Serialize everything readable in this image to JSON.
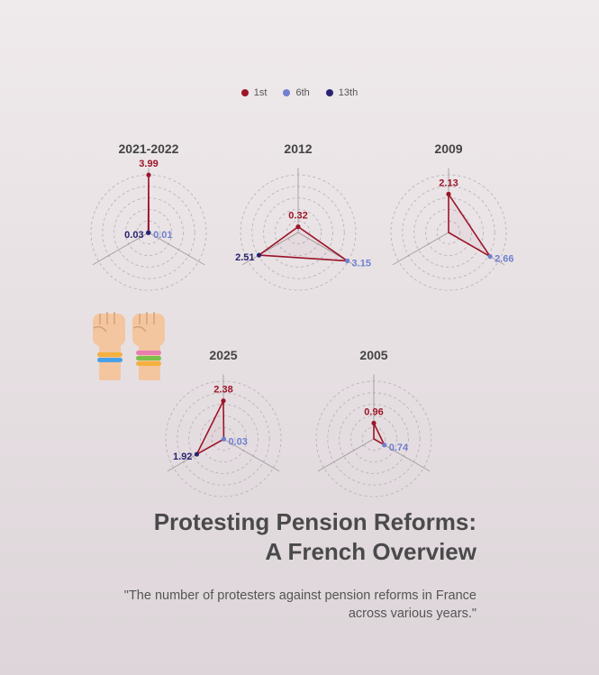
{
  "chart_data": {
    "type": "radar",
    "title": "Protesting Pension Reforms: A French Overview",
    "subtitle": "\"The number of protesters against pension reforms in France across various years.\"",
    "axes": [
      "1st",
      "6th",
      "13th"
    ],
    "series_colors": {
      "1st": "#9b1528",
      "6th": "#7080d0",
      "13th": "#2a2270"
    },
    "grid": true,
    "legend": "top-center",
    "charts": [
      {
        "year": "2021-2022",
        "values": [
          3.99,
          0.01,
          0.03
        ],
        "max": 4.0
      },
      {
        "year": "2012",
        "values": [
          0.32,
          3.15,
          2.51
        ],
        "max": 3.2
      },
      {
        "year": "2009",
        "values": [
          2.13,
          2.66,
          0.0
        ],
        "max": 3.2
      },
      {
        "year": "2025",
        "values": [
          2.38,
          0.03,
          1.92
        ],
        "max": 3.6
      },
      {
        "year": "2005",
        "values": [
          0.96,
          0.74,
          0.0
        ],
        "max": 3.5
      }
    ]
  },
  "legend": {
    "items": [
      {
        "label": "1st",
        "color": "#9b1528"
      },
      {
        "label": "6th",
        "color": "#7080d0"
      },
      {
        "label": "13th",
        "color": "#2a2270"
      }
    ]
  },
  "header": {
    "title_line1": "Protesting Pension Reforms:",
    "title_line2": "A French Overview",
    "subtitle": "\"The number of protesters against pension reforms in France across various years.\""
  },
  "decor": {
    "icon": "raised-fists-icon"
  }
}
